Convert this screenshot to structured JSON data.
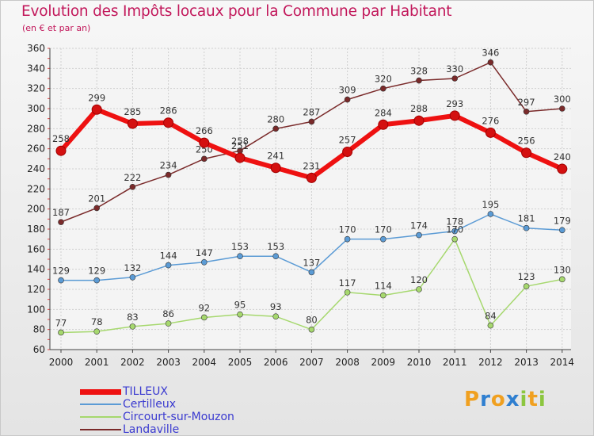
{
  "header": {
    "title": "Evolution des Impôts locaux pour la Commune par Habitant",
    "subtitle": "(en € et par an)"
  },
  "logo": {
    "text": "Proxiti",
    "letters": [
      {
        "ch": "P",
        "color": "#f0a020"
      },
      {
        "ch": "r",
        "color": "#2f7fd0"
      },
      {
        "ch": "o",
        "color": "#f0a020"
      },
      {
        "ch": "x",
        "color": "#2f7fd0"
      },
      {
        "ch": "i",
        "color": "#8cc63f"
      },
      {
        "ch": "t",
        "color": "#f0a020"
      },
      {
        "ch": "i",
        "color": "#8cc63f"
      }
    ]
  },
  "chart_data": {
    "type": "line",
    "title": "Evolution des Impôts locaux pour la Commune par Habitant",
    "ylabel": "(en € et par an)",
    "xlabel": "",
    "x": [
      "2000",
      "2001",
      "2002",
      "2003",
      "2004",
      "2005",
      "2006",
      "2007",
      "2008",
      "2009",
      "2010",
      "2011",
      "2012",
      "2013",
      "2014"
    ],
    "ylim": [
      60,
      360
    ],
    "yticks": [
      60,
      80,
      100,
      120,
      140,
      160,
      180,
      200,
      220,
      240,
      260,
      280,
      300,
      320,
      340,
      360
    ],
    "grid": true,
    "legend_position": "bottom-left",
    "series": [
      {
        "name": "TILLEUX",
        "color": "#ee1111",
        "values": [
          258,
          299,
          285,
          286,
          266,
          251,
          241,
          231,
          257,
          284,
          288,
          293,
          276,
          256,
          240
        ]
      },
      {
        "name": "Certilleux",
        "color": "#5b9bd5",
        "values": [
          129,
          129,
          132,
          144,
          147,
          153,
          153,
          137,
          170,
          170,
          174,
          178,
          195,
          181,
          179
        ]
      },
      {
        "name": "Circourt-sur-Mouzon",
        "color": "#a6d86e",
        "values": [
          77,
          78,
          83,
          86,
          92,
          95,
          93,
          80,
          117,
          114,
          120,
          170,
          84,
          123,
          130
        ]
      },
      {
        "name": "Landaville",
        "color": "#7a2a2a",
        "values": [
          187,
          201,
          222,
          234,
          250,
          258,
          280,
          287,
          309,
          320,
          328,
          330,
          346,
          297,
          300
        ]
      }
    ]
  }
}
